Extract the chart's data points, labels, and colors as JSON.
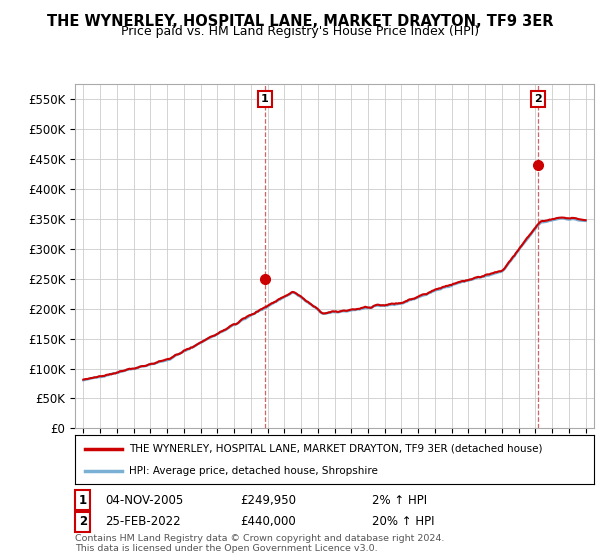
{
  "title": "THE WYNERLEY, HOSPITAL LANE, MARKET DRAYTON, TF9 3ER",
  "subtitle": "Price paid vs. HM Land Registry's House Price Index (HPI)",
  "ylim": [
    0,
    575000
  ],
  "yticks": [
    0,
    50000,
    100000,
    150000,
    200000,
    250000,
    300000,
    350000,
    400000,
    450000,
    500000,
    550000
  ],
  "ytick_labels": [
    "£0",
    "£50K",
    "£100K",
    "£150K",
    "£200K",
    "£250K",
    "£300K",
    "£350K",
    "£400K",
    "£450K",
    "£500K",
    "£550K"
  ],
  "hpi_color": "#7ab0d4",
  "property_color": "#cc0000",
  "marker_color": "#cc0000",
  "background_color": "#ffffff",
  "grid_color": "#cccccc",
  "sale1_x": 2005.84,
  "sale1_y": 249950,
  "sale1_label": "1",
  "sale2_x": 2022.15,
  "sale2_y": 440000,
  "sale2_label": "2",
  "legend_property": "THE WYNERLEY, HOSPITAL LANE, MARKET DRAYTON, TF9 3ER (detached house)",
  "legend_hpi": "HPI: Average price, detached house, Shropshire",
  "annot1_date": "04-NOV-2005",
  "annot1_price": "£249,950",
  "annot1_hpi": "2% ↑ HPI",
  "annot2_date": "25-FEB-2022",
  "annot2_price": "£440,000",
  "annot2_hpi": "20% ↑ HPI",
  "footnote": "Contains HM Land Registry data © Crown copyright and database right 2024.\nThis data is licensed under the Open Government Licence v3.0.",
  "xlim_start": 1994.5,
  "xlim_end": 2025.5
}
